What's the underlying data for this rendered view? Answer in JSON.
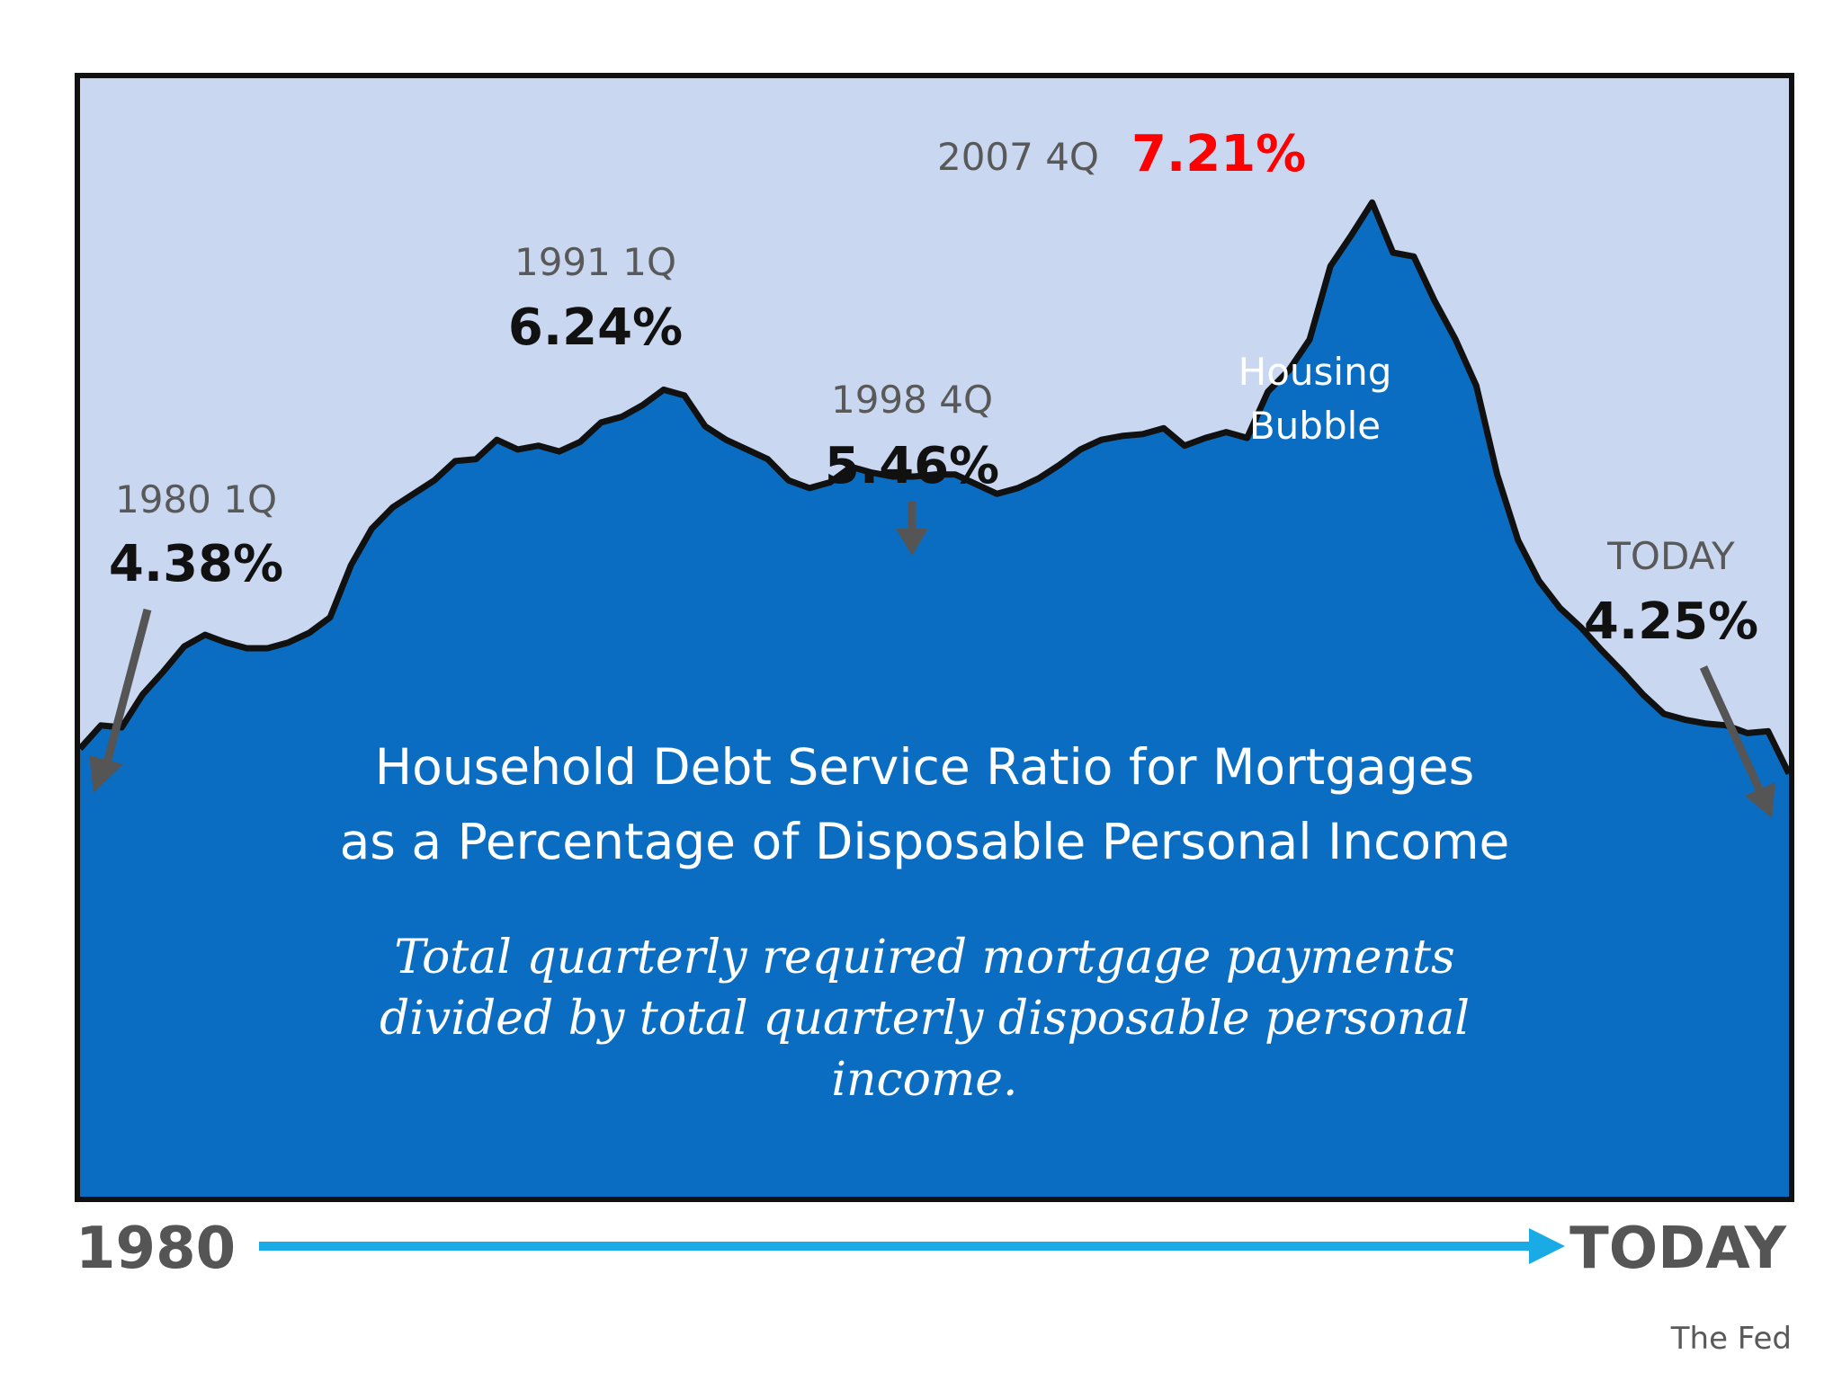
{
  "colors": {
    "sky": "#c9d8f0",
    "area_fill": "#0b6dc1",
    "outline": "#111111",
    "timeline_arrow": "#1aaae6",
    "pointer_arrow": "#555555",
    "peak_value": "#ff0000"
  },
  "chart_data": {
    "type": "area",
    "title": "Household Debt Service Ratio for Mortgages as a Percentage of Disposable Personal Income",
    "title_lines": [
      "Household Debt Service Ratio for Mortgages",
      "as a Percentage of Disposable Personal Income"
    ],
    "subtitle_lines": [
      "Total quarterly required mortgage payments",
      "divided by total quarterly disposable personal",
      "income."
    ],
    "ylim": [
      3.6,
      7.5
    ],
    "series": [
      {
        "values": [
          4.38,
          4.5,
          4.49,
          4.66,
          4.78,
          4.91,
          4.97,
          4.93,
          4.9,
          4.9,
          4.93,
          4.98,
          5.06,
          5.33,
          5.52,
          5.63,
          5.7,
          5.77,
          5.87,
          5.88,
          5.98,
          5.93,
          5.95,
          5.92,
          5.97,
          6.07,
          6.1,
          6.16,
          6.24,
          6.21,
          6.05,
          5.98,
          5.93,
          5.88,
          5.77,
          5.73,
          5.76,
          5.84,
          5.81,
          5.79,
          5.79,
          5.8,
          5.8,
          5.75,
          5.7,
          5.73,
          5.78,
          5.85,
          5.93,
          5.98,
          6.0,
          6.01,
          6.04,
          5.95,
          5.99,
          6.02,
          5.99,
          6.23,
          6.34,
          6.5,
          6.88,
          7.04,
          7.21,
          6.95,
          6.93,
          6.7,
          6.5,
          6.26,
          5.8,
          5.46,
          5.25,
          5.11,
          5.01,
          4.89,
          4.78,
          4.66,
          4.56,
          4.53,
          4.51,
          4.5,
          4.46,
          4.47,
          4.25
        ]
      }
    ],
    "annotations": [
      {
        "label": "1980 1Q",
        "value": "4.38%"
      },
      {
        "label": "1991 1Q",
        "value": "6.24%"
      },
      {
        "label": "1998 4Q",
        "value": "5.46%"
      },
      {
        "label": "2007 4Q",
        "value": "7.21%"
      },
      {
        "label": "TODAY",
        "value": "4.25%"
      }
    ],
    "region_label_lines": [
      "Housing",
      "Bubble"
    ],
    "x_start_label": "1980",
    "x_end_label": "TODAY",
    "source": "The Fed"
  }
}
